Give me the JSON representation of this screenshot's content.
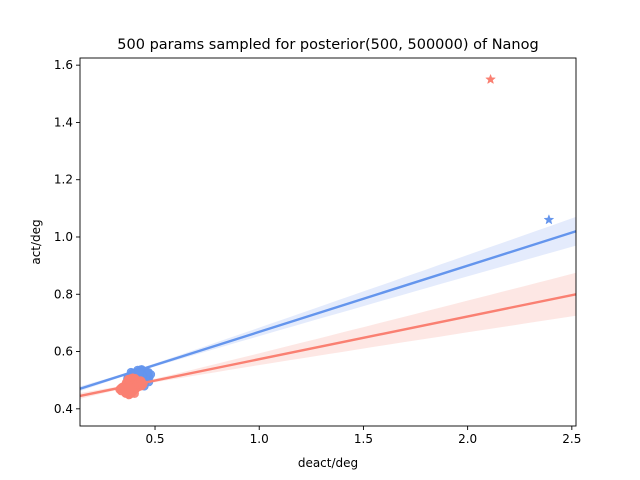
{
  "chart_data": {
    "type": "scatter",
    "title": "500 params sampled for posterior(500, 500000) of Nanog",
    "xlabel": "deact/deg",
    "ylabel": "act/deg",
    "xlim": [
      0.14,
      2.52
    ],
    "ylim": [
      0.34,
      1.625
    ],
    "xticks": [
      0.5,
      1.0,
      1.5,
      2.0,
      2.5
    ],
    "xtick_labels": [
      "0.5",
      "1.0",
      "1.5",
      "2.0",
      "2.5"
    ],
    "yticks": [
      0.4,
      0.6,
      0.8,
      1.0,
      1.2,
      1.4,
      1.6
    ],
    "ytick_labels": [
      "0.4",
      "0.6",
      "0.8",
      "1.0",
      "1.2",
      "1.4",
      "1.6"
    ],
    "grid": false,
    "legend": "none",
    "series": [
      {
        "color": "#6495ED",
        "band_color": "#dfe8fb",
        "scatter_x_range": [
          0.28,
          0.55
        ],
        "scatter_y_range": [
          0.44,
          0.58
        ],
        "star_point": {
          "x": 2.39,
          "y": 1.06
        },
        "regression": {
          "x": [
            0.14,
            2.52
          ],
          "y": [
            0.47,
            1.02
          ],
          "ci_low_at_max": 0.97,
          "ci_high_at_max": 1.07
        }
      },
      {
        "color": "#FA8072",
        "band_color": "#fde3df",
        "scatter_x_range": [
          0.27,
          0.5
        ],
        "scatter_y_range": [
          0.4,
          0.56
        ],
        "star_point": {
          "x": 2.11,
          "y": 1.55
        },
        "regression": {
          "x": [
            0.14,
            2.52
          ],
          "y": [
            0.445,
            0.8
          ],
          "ci_low_at_max": 0.72,
          "ci_high_at_max": 0.87
        }
      }
    ]
  }
}
